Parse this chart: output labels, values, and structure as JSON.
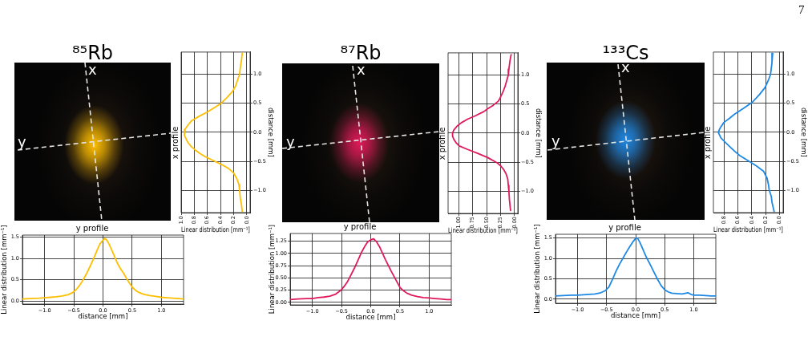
{
  "chart_data": [
    {
      "type": "other",
      "title": "⁸⁵Rb",
      "annotations": [
        "x",
        "y"
      ]
    },
    {
      "type": "line",
      "title": "x profile",
      "xlabel": "Linear distribution [mm⁻¹]",
      "ylabel": "distance [mm]",
      "color": "#ffbf00",
      "grid": true,
      "xlim": [
        1.0,
        -0.05
      ],
      "xticks": [
        {
          "value": 1.0,
          "label": "1.0"
        },
        {
          "value": 0.8,
          "label": "0.8"
        },
        {
          "value": 0.6,
          "label": "0.6"
        },
        {
          "value": 0.4,
          "label": "0.4"
        },
        {
          "value": 0.2,
          "label": "0.2"
        },
        {
          "value": 0,
          "label": "0.0"
        }
      ],
      "ylim": [
        -1.38,
        1.38
      ],
      "yticks": [
        {
          "value": -1.0,
          "label": "−1.0"
        },
        {
          "value": -0.5,
          "label": "−0.5"
        },
        {
          "value": 0,
          "label": "0.0"
        },
        {
          "value": 0.5,
          "label": "0.5"
        },
        {
          "value": 1.0,
          "label": "1.0"
        }
      ],
      "x": [
        0.07,
        0.08,
        0.1,
        0.11,
        0.14,
        0.17,
        0.22,
        0.3,
        0.39,
        0.5,
        0.6,
        0.72,
        0.84,
        0.9,
        0.94,
        0.95,
        0.95,
        0.93,
        0.9,
        0.85,
        0.79,
        0.72,
        0.63,
        0.52,
        0.39,
        0.28,
        0.2,
        0.15,
        0.12,
        0.11,
        0.1,
        0.08,
        0.07
      ],
      "values": [
        1.36,
        1.25,
        1.1,
        1.0,
        0.9,
        0.8,
        0.7,
        0.6,
        0.5,
        0.42,
        0.35,
        0.28,
        0.2,
        0.12,
        0.05,
        0.0,
        -0.05,
        -0.1,
        -0.17,
        -0.24,
        -0.3,
        -0.36,
        -0.42,
        -0.48,
        -0.55,
        -0.62,
        -0.7,
        -0.8,
        -0.9,
        -1.0,
        -1.12,
        -1.25,
        -1.36
      ]
    },
    {
      "type": "line",
      "title": "y profile",
      "xlabel": "distance [mm]",
      "ylabel": "Linear distribution [mm⁻¹]",
      "color": "#ffbf00",
      "grid": true,
      "xlim": [
        -1.38,
        1.38
      ],
      "xticks": [
        {
          "value": -1.0,
          "label": "−1.0"
        },
        {
          "value": -0.5,
          "label": "−0.5"
        },
        {
          "value": 0,
          "label": "0.0"
        },
        {
          "value": 0.5,
          "label": "0.5"
        },
        {
          "value": 1.0,
          "label": "1.0"
        }
      ],
      "ylim": [
        -0.07,
        1.55
      ],
      "yticks": [
        {
          "value": 0,
          "label": "0.0"
        },
        {
          "value": 0.5,
          "label": "0.5"
        },
        {
          "value": 1.0,
          "label": "1.0"
        },
        {
          "value": 1.5,
          "label": "1.5"
        }
      ],
      "x": [
        -1.38,
        -1.25,
        -1.1,
        -1.0,
        -0.9,
        -0.8,
        -0.7,
        -0.6,
        -0.52,
        -0.46,
        -0.4,
        -0.34,
        -0.28,
        -0.22,
        -0.16,
        -0.1,
        -0.05,
        0.0,
        0.03,
        0.06,
        0.1,
        0.15,
        0.2,
        0.25,
        0.3,
        0.35,
        0.4,
        0.45,
        0.5,
        0.56,
        0.62,
        0.7,
        0.8,
        0.9,
        1.0,
        1.1,
        1.2,
        1.3,
        1.38
      ],
      "values": [
        0.05,
        0.06,
        0.07,
        0.08,
        0.09,
        0.1,
        0.12,
        0.15,
        0.2,
        0.27,
        0.37,
        0.5,
        0.65,
        0.82,
        1.0,
        1.2,
        1.35,
        1.43,
        1.47,
        1.44,
        1.35,
        1.2,
        1.04,
        0.88,
        0.76,
        0.66,
        0.54,
        0.43,
        0.33,
        0.25,
        0.2,
        0.16,
        0.13,
        0.11,
        0.09,
        0.08,
        0.07,
        0.06,
        0.05
      ]
    },
    {
      "type": "other",
      "title": "⁸⁷Rb",
      "annotations": [
        "x",
        "y"
      ]
    },
    {
      "type": "line",
      "title": "x profile",
      "xlabel": "Linear distribution [mm⁻¹]",
      "ylabel": "distance [mm]",
      "color": "#e0195a",
      "grid": true,
      "xlim": [
        1.19,
        -0.06
      ],
      "xticks": [
        {
          "value": 1.0,
          "label": "1.00"
        },
        {
          "value": 0.75,
          "label": "0.75"
        },
        {
          "value": 0.5,
          "label": "0.50"
        },
        {
          "value": 0.25,
          "label": "0.25"
        },
        {
          "value": 0,
          "label": "0.00"
        }
      ],
      "ylim": [
        -1.38,
        1.38
      ],
      "yticks": [
        {
          "value": -1.0,
          "label": "−1.0"
        },
        {
          "value": -0.5,
          "label": "−0.5"
        },
        {
          "value": 0,
          "label": "0.0"
        },
        {
          "value": 0.5,
          "label": "0.5"
        },
        {
          "value": 1.0,
          "label": "1.0"
        }
      ],
      "x": [
        0.06,
        0.08,
        0.1,
        0.11,
        0.14,
        0.17,
        0.21,
        0.26,
        0.29,
        0.38,
        0.48,
        0.55,
        0.7,
        0.84,
        0.95,
        1.03,
        1.09,
        1.11,
        1.11,
        1.09,
        1.05,
        0.99,
        0.84,
        0.65,
        0.48,
        0.31,
        0.24,
        0.19,
        0.15,
        0.12,
        0.11,
        0.1,
        0.09,
        0.07
      ],
      "values": [
        1.35,
        1.25,
        1.1,
        1.0,
        0.9,
        0.8,
        0.7,
        0.6,
        0.55,
        0.48,
        0.42,
        0.37,
        0.3,
        0.24,
        0.18,
        0.12,
        0.05,
        0.0,
        -0.05,
        -0.1,
        -0.16,
        -0.22,
        -0.28,
        -0.35,
        -0.42,
        -0.51,
        -0.57,
        -0.63,
        -0.7,
        -0.79,
        -0.9,
        -1.0,
        -1.15,
        -1.33
      ]
    },
    {
      "type": "line",
      "title": "y profile",
      "xlabel": "distance [mm]",
      "ylabel": "Linear distribution [mm⁻¹]",
      "color": "#e0195a",
      "grid": true,
      "xlim": [
        -1.38,
        1.38
      ],
      "xticks": [
        {
          "value": -1.0,
          "label": "−1.0"
        },
        {
          "value": -0.5,
          "label": "−0.5"
        },
        {
          "value": 0,
          "label": "0.0"
        },
        {
          "value": 0.5,
          "label": "0.5"
        },
        {
          "value": 1.0,
          "label": "1.0"
        }
      ],
      "ylim": [
        -0.05,
        1.41
      ],
      "yticks": [
        {
          "value": 0,
          "label": "0.00"
        },
        {
          "value": 0.25,
          "label": "0.25"
        },
        {
          "value": 0.5,
          "label": "0.50"
        },
        {
          "value": 0.75,
          "label": "0.75"
        },
        {
          "value": 1.0,
          "label": "1.00"
        },
        {
          "value": 1.25,
          "label": "1.25"
        }
      ],
      "x": [
        -1.38,
        -1.25,
        -1.1,
        -1.0,
        -0.9,
        -0.8,
        -0.7,
        -0.6,
        -0.52,
        -0.46,
        -0.4,
        -0.34,
        -0.28,
        -0.22,
        -0.16,
        -0.1,
        -0.05,
        0.0,
        0.05,
        0.1,
        0.15,
        0.2,
        0.25,
        0.3,
        0.35,
        0.4,
        0.45,
        0.5,
        0.56,
        0.62,
        0.7,
        0.8,
        0.9,
        1.0,
        1.1,
        1.2,
        1.3,
        1.38
      ],
      "values": [
        0.06,
        0.07,
        0.08,
        0.08,
        0.1,
        0.11,
        0.13,
        0.17,
        0.24,
        0.32,
        0.42,
        0.56,
        0.7,
        0.86,
        1.02,
        1.15,
        1.24,
        1.28,
        1.3,
        1.24,
        1.14,
        1.01,
        0.88,
        0.76,
        0.64,
        0.53,
        0.42,
        0.31,
        0.24,
        0.19,
        0.15,
        0.12,
        0.1,
        0.09,
        0.08,
        0.07,
        0.06,
        0.06
      ]
    },
    {
      "type": "other",
      "title": "¹³³Cs",
      "annotations": [
        "x",
        "y"
      ]
    },
    {
      "type": "line",
      "title": "x profile",
      "xlabel": "Linear distribution [mm⁻¹]",
      "ylabel": "distance [mm]",
      "color": "#1e88e5",
      "grid": true,
      "xlim": [
        0.95,
        -0.05
      ],
      "xticks": [
        {
          "value": 0.8,
          "label": "0.8"
        },
        {
          "value": 0.6,
          "label": "0.6"
        },
        {
          "value": 0.4,
          "label": "0.4"
        },
        {
          "value": 0.2,
          "label": "0.2"
        },
        {
          "value": 0,
          "label": "0.0"
        }
      ],
      "ylim": [
        -1.38,
        1.38
      ],
      "yticks": [
        {
          "value": -1.0,
          "label": "−1.0"
        },
        {
          "value": -0.5,
          "label": "−0.5"
        },
        {
          "value": 0,
          "label": "0.0"
        },
        {
          "value": 0.5,
          "label": "0.5"
        },
        {
          "value": 1.0,
          "label": "1.0"
        }
      ],
      "x": [
        0.1,
        0.11,
        0.13,
        0.16,
        0.21,
        0.29,
        0.39,
        0.51,
        0.65,
        0.72,
        0.8,
        0.84,
        0.86,
        0.88,
        0.86,
        0.84,
        0.78,
        0.72,
        0.65,
        0.57,
        0.49,
        0.42,
        0.33,
        0.23,
        0.18,
        0.16,
        0.15,
        0.12,
        0.11,
        0.08
      ],
      "values": [
        1.36,
        1.2,
        1.0,
        0.9,
        0.77,
        0.65,
        0.52,
        0.42,
        0.31,
        0.24,
        0.17,
        0.1,
        0.06,
        0.0,
        -0.05,
        -0.1,
        -0.17,
        -0.24,
        -0.32,
        -0.4,
        -0.46,
        -0.51,
        -0.58,
        -0.67,
        -0.79,
        -0.9,
        -0.99,
        -1.1,
        -1.2,
        -1.36
      ]
    },
    {
      "type": "line",
      "title": "y profile",
      "xlabel": "distance [mm]",
      "ylabel": "Linear distribution [mm⁻¹]",
      "color": "#1e88e5",
      "grid": true,
      "xlim": [
        -1.38,
        1.38
      ],
      "xticks": [
        {
          "value": -1.0,
          "label": "−1.0"
        },
        {
          "value": -0.5,
          "label": "−0.5"
        },
        {
          "value": 0,
          "label": "0.0"
        },
        {
          "value": 0.5,
          "label": "0.5"
        },
        {
          "value": 1.0,
          "label": "1.0"
        }
      ],
      "ylim": [
        -0.1,
        1.59
      ],
      "yticks": [
        {
          "value": 0,
          "label": "0.0"
        },
        {
          "value": 0.5,
          "label": "0.5"
        },
        {
          "value": 1.0,
          "label": "1.0"
        },
        {
          "value": 1.5,
          "label": "1.5"
        }
      ],
      "x": [
        -1.38,
        -1.25,
        -1.1,
        -1.0,
        -0.9,
        -0.8,
        -0.7,
        -0.6,
        -0.52,
        -0.46,
        -0.4,
        -0.34,
        -0.28,
        -0.22,
        -0.16,
        -0.1,
        -0.05,
        0.0,
        0.03,
        0.07,
        0.12,
        0.18,
        0.25,
        0.32,
        0.38,
        0.44,
        0.5,
        0.56,
        0.62,
        0.7,
        0.8,
        0.9,
        0.95,
        1.0,
        1.1,
        1.2,
        1.3,
        1.38
      ],
      "values": [
        0.08,
        0.09,
        0.1,
        0.1,
        0.11,
        0.12,
        0.13,
        0.16,
        0.21,
        0.3,
        0.48,
        0.68,
        0.85,
        1.0,
        1.15,
        1.29,
        1.4,
        1.49,
        1.5,
        1.4,
        1.24,
        1.04,
        0.85,
        0.65,
        0.48,
        0.33,
        0.23,
        0.18,
        0.15,
        0.14,
        0.13,
        0.16,
        0.12,
        0.1,
        0.1,
        0.09,
        0.08,
        0.08
      ]
    },
    {
      "type": "other",
      "annotations": [
        "7"
      ]
    }
  ]
}
